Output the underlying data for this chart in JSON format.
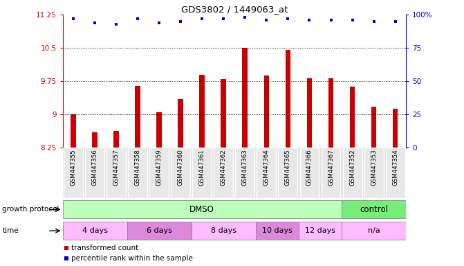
{
  "title": "GDS3802 / 1449063_at",
  "samples": [
    "GSM447355",
    "GSM447356",
    "GSM447357",
    "GSM447358",
    "GSM447359",
    "GSM447360",
    "GSM447361",
    "GSM447362",
    "GSM447363",
    "GSM447364",
    "GSM447365",
    "GSM447366",
    "GSM447367",
    "GSM447352",
    "GSM447353",
    "GSM447354"
  ],
  "transformed_count": [
    9.0,
    8.6,
    8.62,
    9.65,
    9.05,
    9.35,
    9.9,
    9.8,
    10.5,
    9.87,
    10.45,
    9.82,
    9.82,
    9.63,
    9.18,
    9.12
  ],
  "percentile_rank": [
    97,
    94,
    93,
    97,
    94,
    95,
    97,
    97,
    98,
    96,
    97,
    96,
    96,
    96,
    95,
    95
  ],
  "bar_color": "#cc0000",
  "dot_color": "#0000cc",
  "ylim_left": [
    8.25,
    11.25
  ],
  "ylim_right": [
    0,
    100
  ],
  "yticks_left": [
    8.25,
    9.0,
    9.75,
    10.5,
    11.25
  ],
  "ytick_labels_left": [
    "8.25",
    "9",
    "9.75",
    "10.5",
    "11.25"
  ],
  "yticks_right": [
    0,
    25,
    50,
    75,
    100
  ],
  "ytick_labels_right": [
    "0",
    "25",
    "50",
    "75",
    "100%"
  ],
  "hlines": [
    9.0,
    9.75,
    10.5
  ],
  "groups": [
    {
      "label": "DMSO",
      "start": 0,
      "end": 13,
      "color": "#bbffbb"
    },
    {
      "label": "control",
      "start": 13,
      "end": 16,
      "color": "#77ee77"
    }
  ],
  "time_groups": [
    {
      "label": "4 days",
      "start": 0,
      "end": 3,
      "color": "#ffbbff"
    },
    {
      "label": "6 days",
      "start": 3,
      "end": 6,
      "color": "#dd88dd"
    },
    {
      "label": "8 days",
      "start": 6,
      "end": 9,
      "color": "#ffbbff"
    },
    {
      "label": "10 days",
      "start": 9,
      "end": 11,
      "color": "#dd88dd"
    },
    {
      "label": "12 days",
      "start": 11,
      "end": 13,
      "color": "#ffbbff"
    },
    {
      "label": "n/a",
      "start": 13,
      "end": 16,
      "color": "#ffbbff"
    }
  ],
  "legend_items": [
    {
      "label": "transformed count",
      "color": "#cc0000"
    },
    {
      "label": "percentile rank within the sample",
      "color": "#0000cc"
    }
  ],
  "protocol_label": "growth protocol",
  "time_label": "time",
  "left_axis_color": "#cc0000",
  "right_axis_color": "#0000cc",
  "background_color": "#ffffff"
}
